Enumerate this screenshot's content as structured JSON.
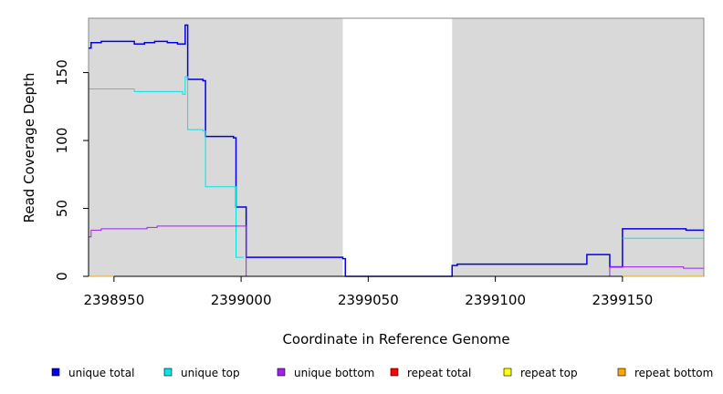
{
  "chart_data": {
    "type": "line",
    "xlabel": "Coordinate in Reference Genome",
    "ylabel": "Read Coverage Depth",
    "xlim": [
      2398940,
      2399182
    ],
    "ylim": [
      0,
      190
    ],
    "xticks": [
      2398950,
      2399000,
      2399050,
      2399100,
      2399150
    ],
    "yticks": [
      0,
      50,
      100,
      150
    ],
    "shaded_regions": [
      [
        2398940,
        2399040
      ],
      [
        2399083,
        2399182
      ]
    ],
    "shade_color": "#d9d9d9",
    "legend_placement": "bottom",
    "series": [
      {
        "name": "unique total",
        "color": "#0000ee",
        "x": [
          2398940,
          2398941,
          2398945,
          2398958,
          2398962,
          2398966,
          2398971,
          2398975,
          2398978,
          2398979,
          2398985,
          2398986,
          2398997,
          2398998,
          2399002,
          2399040,
          2399041,
          2399083,
          2399085,
          2399136,
          2399145,
          2399150,
          2399175,
          2399182
        ],
        "y": [
          168,
          172,
          173,
          171,
          172,
          173,
          172,
          171,
          185,
          145,
          144,
          103,
          102,
          51,
          14,
          13,
          0,
          8,
          9,
          16,
          7,
          35,
          34,
          34
        ]
      },
      {
        "name": "unique top",
        "color": "#00e5e5",
        "x": [
          2398940,
          2398958,
          2398977,
          2398978,
          2398979,
          2398985,
          2398986,
          2398997,
          2398998,
          2399001,
          2399002,
          2399150,
          2399182
        ],
        "y": [
          138,
          136,
          134,
          147,
          108,
          107,
          66,
          66,
          14,
          14,
          0,
          28,
          28
        ],
        "hide_below": 1
      },
      {
        "name": "unique bottom",
        "color": "#a020f0",
        "x": [
          2398940,
          2398941,
          2398945,
          2398963,
          2398967,
          2399002,
          2399040,
          2399083,
          2399145,
          2399150,
          2399174,
          2399182
        ],
        "y": [
          29,
          34,
          35,
          36,
          37,
          0,
          0,
          0,
          7,
          7,
          6,
          6
        ]
      },
      {
        "name": "repeat total",
        "color": "#ff0000",
        "x": [
          2398940,
          2399182
        ],
        "y": [
          0,
          0
        ],
        "hidden": true
      },
      {
        "name": "repeat top",
        "color": "#ffff00",
        "x": [
          2398940,
          2399182
        ],
        "y": [
          0,
          0
        ],
        "hidden": true
      },
      {
        "name": "repeat bottom",
        "color": "#ffa500",
        "x": [
          2398940,
          2399040,
          2399083,
          2399182
        ],
        "y": [
          0,
          0,
          0,
          0
        ],
        "gap_after_index": 1
      }
    ]
  }
}
